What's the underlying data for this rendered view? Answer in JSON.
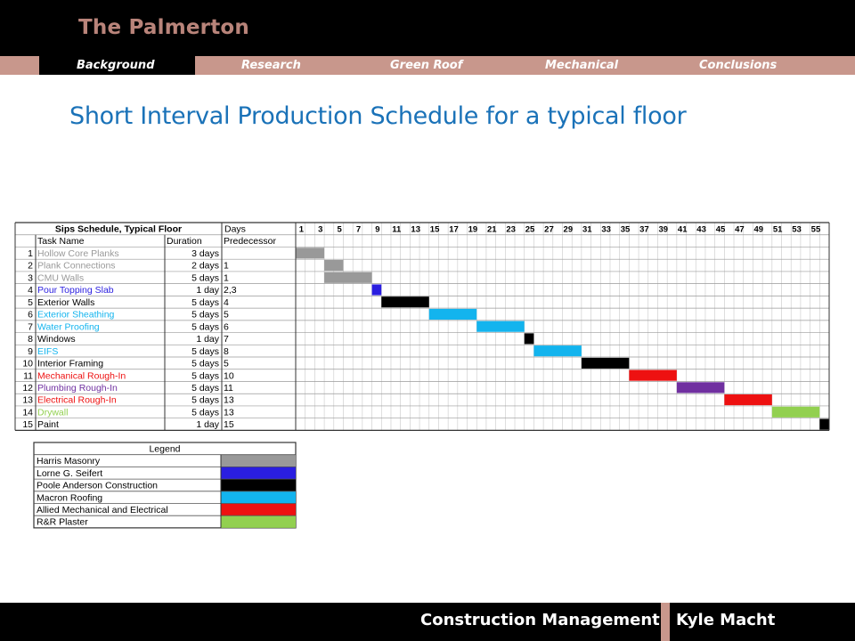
{
  "header": {
    "title": "The Palmerton"
  },
  "nav": {
    "tabs": [
      {
        "label": "Background",
        "active": true
      },
      {
        "label": "Research",
        "active": false
      },
      {
        "label": "Green Roof",
        "active": false
      },
      {
        "label": "Mechanical",
        "active": false
      },
      {
        "label": "Conclusions",
        "active": false
      }
    ]
  },
  "slide": {
    "title": "Short Interval Production Schedule for a typical floor"
  },
  "schedule": {
    "title": "Sips Schedule, Typical Floor",
    "days_header": "Days",
    "columns": [
      "Task Name",
      "Duration",
      "Predecessor"
    ],
    "day_labels": [
      "1",
      "3",
      "5",
      "7",
      "9",
      "11",
      "13",
      "15",
      "17",
      "19",
      "21",
      "23",
      "25",
      "27",
      "29",
      "31",
      "33",
      "35",
      "37",
      "39",
      "41",
      "43",
      "45",
      "47",
      "49",
      "51",
      "53",
      "55"
    ],
    "tasks": [
      {
        "id": "1",
        "name": "Hollow Core Planks",
        "duration": "3 days",
        "predecessor": "",
        "start": 1,
        "days": 3,
        "color": "#999999",
        "text_color": "#999999"
      },
      {
        "id": "2",
        "name": "Plank Connections",
        "duration": "2 days",
        "predecessor": "1",
        "start": 4,
        "days": 2,
        "color": "#999999",
        "text_color": "#999999"
      },
      {
        "id": "3",
        "name": "CMU Walls",
        "duration": "5 days",
        "predecessor": "1",
        "start": 4,
        "days": 5,
        "color": "#999999",
        "text_color": "#999999"
      },
      {
        "id": "4",
        "name": "Pour Topping Slab",
        "duration": "1 day",
        "predecessor": "2,3",
        "start": 9,
        "days": 1,
        "color": "#2a1ee0",
        "text_color": "#2a1ee0"
      },
      {
        "id": "5",
        "name": "Exterior Walls",
        "duration": "5 days",
        "predecessor": "4",
        "start": 10,
        "days": 5,
        "color": "#000000",
        "text_color": "#000000"
      },
      {
        "id": "6",
        "name": "Exterior Sheathing",
        "duration": "5 days",
        "predecessor": "5",
        "start": 15,
        "days": 5,
        "color": "#13b4ee",
        "text_color": "#13b4ee"
      },
      {
        "id": "7",
        "name": "Water Proofing",
        "duration": "5 days",
        "predecessor": "6",
        "start": 20,
        "days": 5,
        "color": "#13b4ee",
        "text_color": "#13b4ee"
      },
      {
        "id": "8",
        "name": "Windows",
        "duration": "1 day",
        "predecessor": "7",
        "start": 25,
        "days": 1,
        "color": "#000000",
        "text_color": "#000000"
      },
      {
        "id": "9",
        "name": "EIFS",
        "duration": "5 days",
        "predecessor": "8",
        "start": 26,
        "days": 5,
        "color": "#13b4ee",
        "text_color": "#13b4ee"
      },
      {
        "id": "10",
        "name": "Interior Framing",
        "duration": "5 days",
        "predecessor": "5",
        "start": 31,
        "days": 5,
        "color": "#000000",
        "text_color": "#000000"
      },
      {
        "id": "11",
        "name": "Mechanical Rough-In",
        "duration": "5 days",
        "predecessor": "10",
        "start": 36,
        "days": 5,
        "color": "#ee1111",
        "text_color": "#ee1111"
      },
      {
        "id": "12",
        "name": "Plumbing Rough-In",
        "duration": "5 days",
        "predecessor": "11",
        "start": 41,
        "days": 5,
        "color": "#7030a0",
        "text_color": "#7030a0"
      },
      {
        "id": "13",
        "name": "Electrical Rough-In",
        "duration": "5 days",
        "predecessor": "13",
        "start": 46,
        "days": 5,
        "color": "#ee1111",
        "text_color": "#ee1111"
      },
      {
        "id": "14",
        "name": "Drywall",
        "duration": "5 days",
        "predecessor": "13",
        "start": 51,
        "days": 5,
        "color": "#92d050",
        "text_color": "#92d050"
      },
      {
        "id": "15",
        "name": "Paint",
        "duration": "1 day",
        "predecessor": "15",
        "start": 56,
        "days": 1,
        "color": "#000000",
        "text_color": "#000000"
      }
    ]
  },
  "legend": {
    "title": "Legend",
    "items": [
      {
        "label": "Harris Masonry",
        "color": "#999999"
      },
      {
        "label": "Lorne G. Seifert",
        "color": "#2a1ee0"
      },
      {
        "label": "Poole Anderson Construction",
        "color": "#000000"
      },
      {
        "label": "Macron Roofing",
        "color": "#13b4ee"
      },
      {
        "label": "Allied Mechanical and Electrical",
        "color": "#ee1111"
      },
      {
        "label": "R&R Plaster",
        "color": "#92d050"
      }
    ]
  },
  "footer": {
    "org": "Construction Management",
    "name": "Kyle Macht"
  }
}
